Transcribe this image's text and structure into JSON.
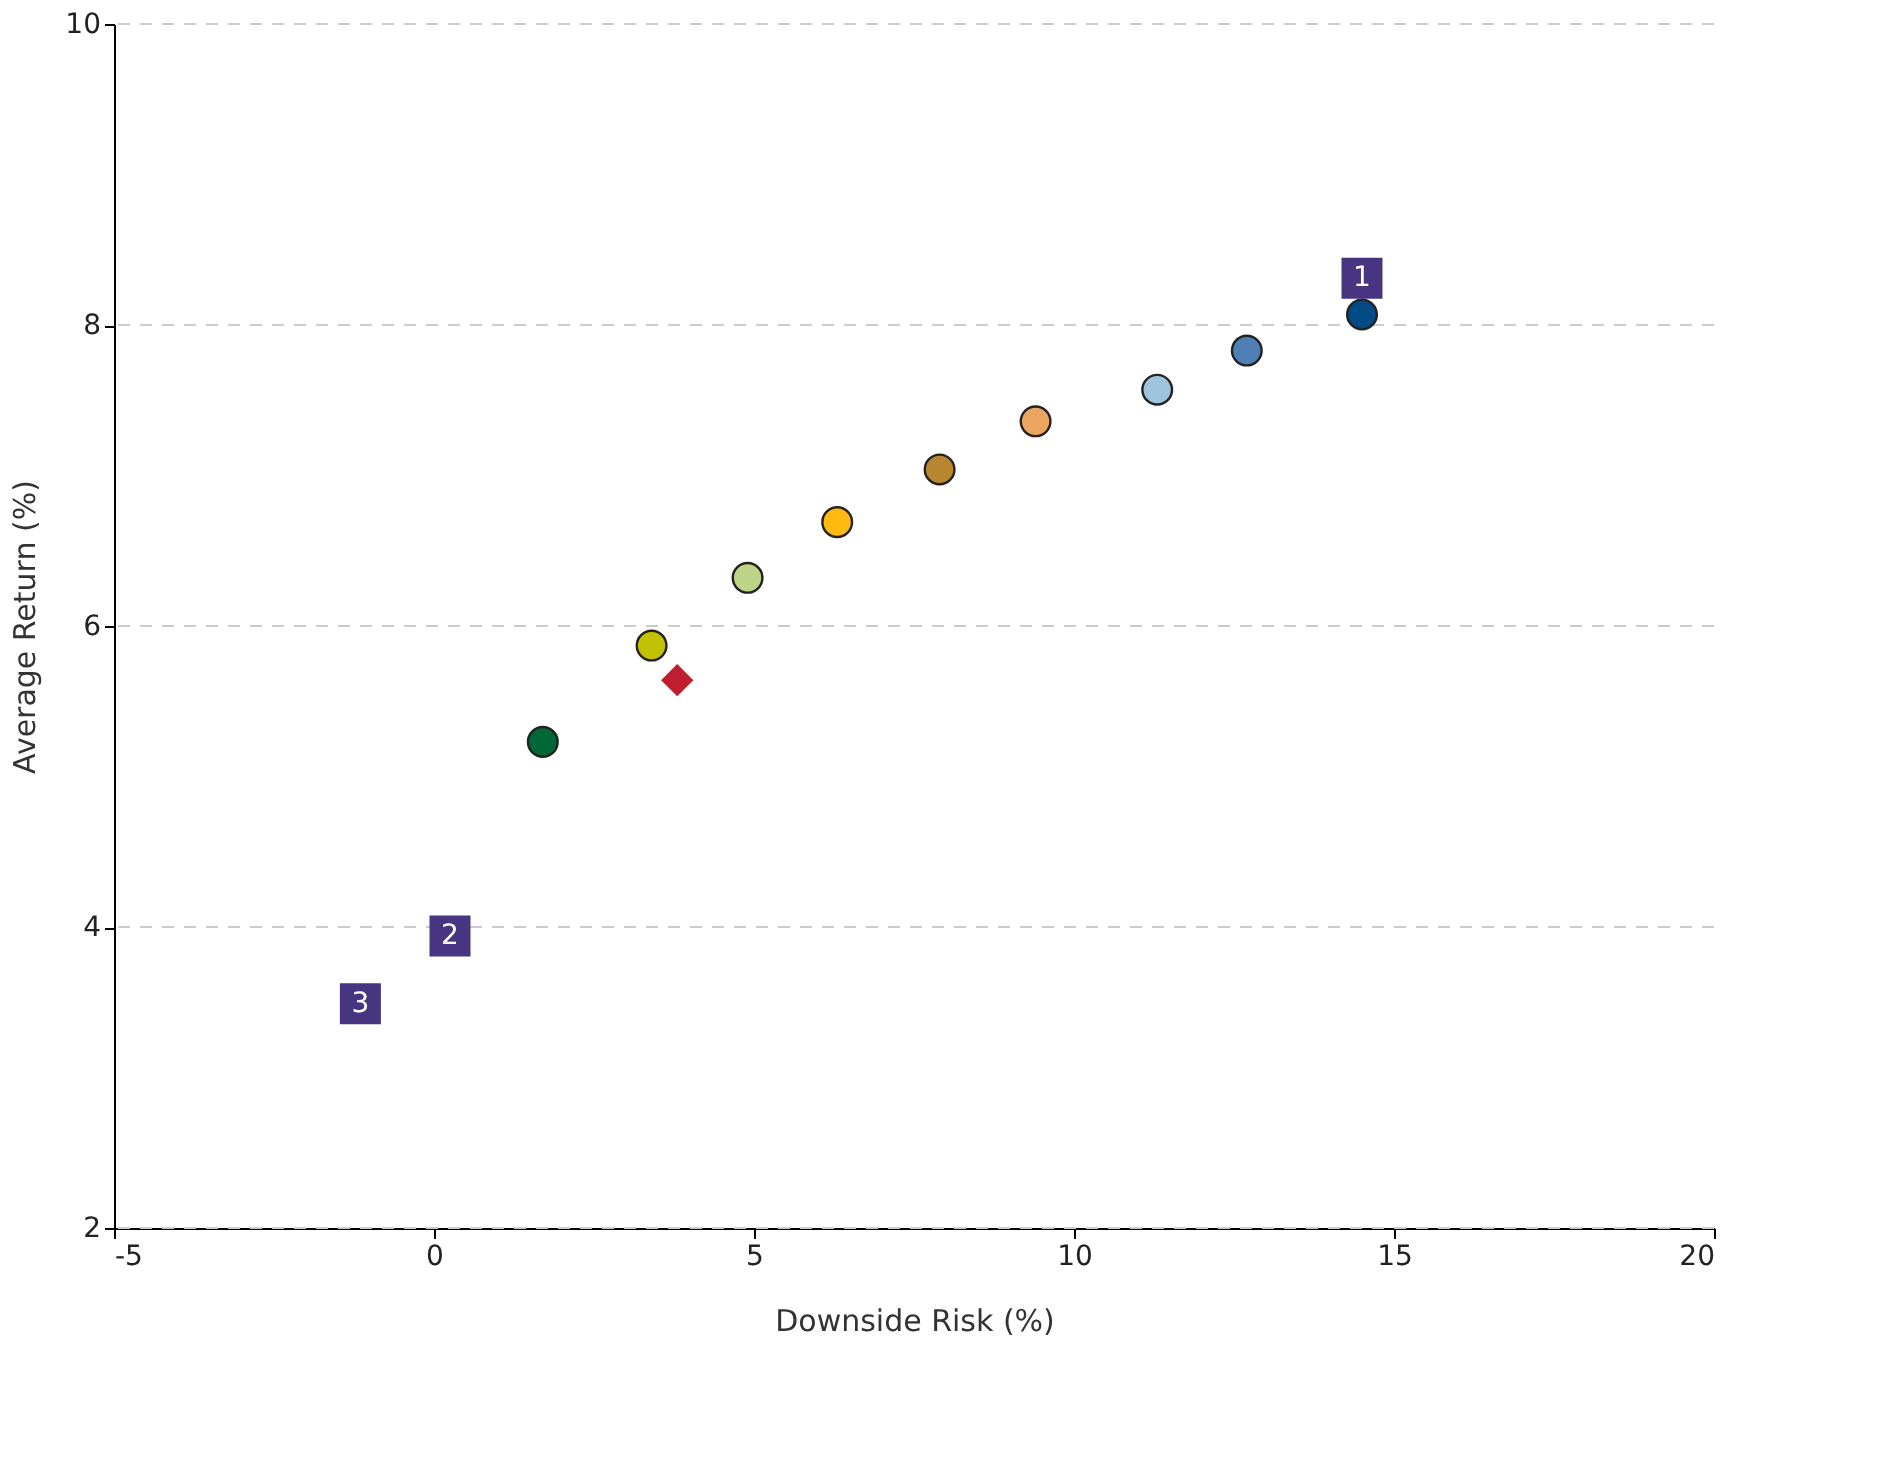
{
  "chart_data": {
    "type": "scatter",
    "xlabel": "Downside Risk (%)",
    "ylabel": "Average Return (%)",
    "xlim": [
      -5,
      20
    ],
    "xticks": [
      -5,
      0,
      5,
      10,
      15,
      20
    ],
    "ylim": [
      2,
      10
    ],
    "yticks": [
      2,
      4,
      6,
      8,
      10
    ],
    "grid": "y",
    "annotations": [
      {
        "text": "1",
        "x": 14.5,
        "y": 8.31
      },
      {
        "text": "2",
        "x": 0.25,
        "y": 3.94
      },
      {
        "text": "3",
        "x": -1.15,
        "y": 3.49
      }
    ],
    "series": [
      {
        "type": "scatter",
        "marker": "circle",
        "x": [
          1.7,
          3.4,
          4.9,
          6.3,
          7.9,
          9.4,
          11.3,
          12.7,
          14.5
        ],
        "values": [
          5.23,
          5.87,
          6.32,
          6.69,
          7.04,
          7.36,
          7.57,
          7.83,
          8.07
        ],
        "colors": [
          "#006837",
          "#c2c200",
          "#bdd486",
          "#ffb90f",
          "#b8862e",
          "#eca560",
          "#9ec3dc",
          "#4f7fb4",
          "#014a85"
        ]
      },
      {
        "type": "scatter",
        "marker": "diamond",
        "x": [
          3.8
        ],
        "values": [
          5.64
        ],
        "color": "#be1e2d"
      },
      {
        "type": "scatter",
        "marker": "square",
        "x": [
          14.5,
          0.25,
          -1.15
        ],
        "values": [
          8.31,
          3.94,
          3.49
        ],
        "color": "#473582"
      }
    ]
  }
}
